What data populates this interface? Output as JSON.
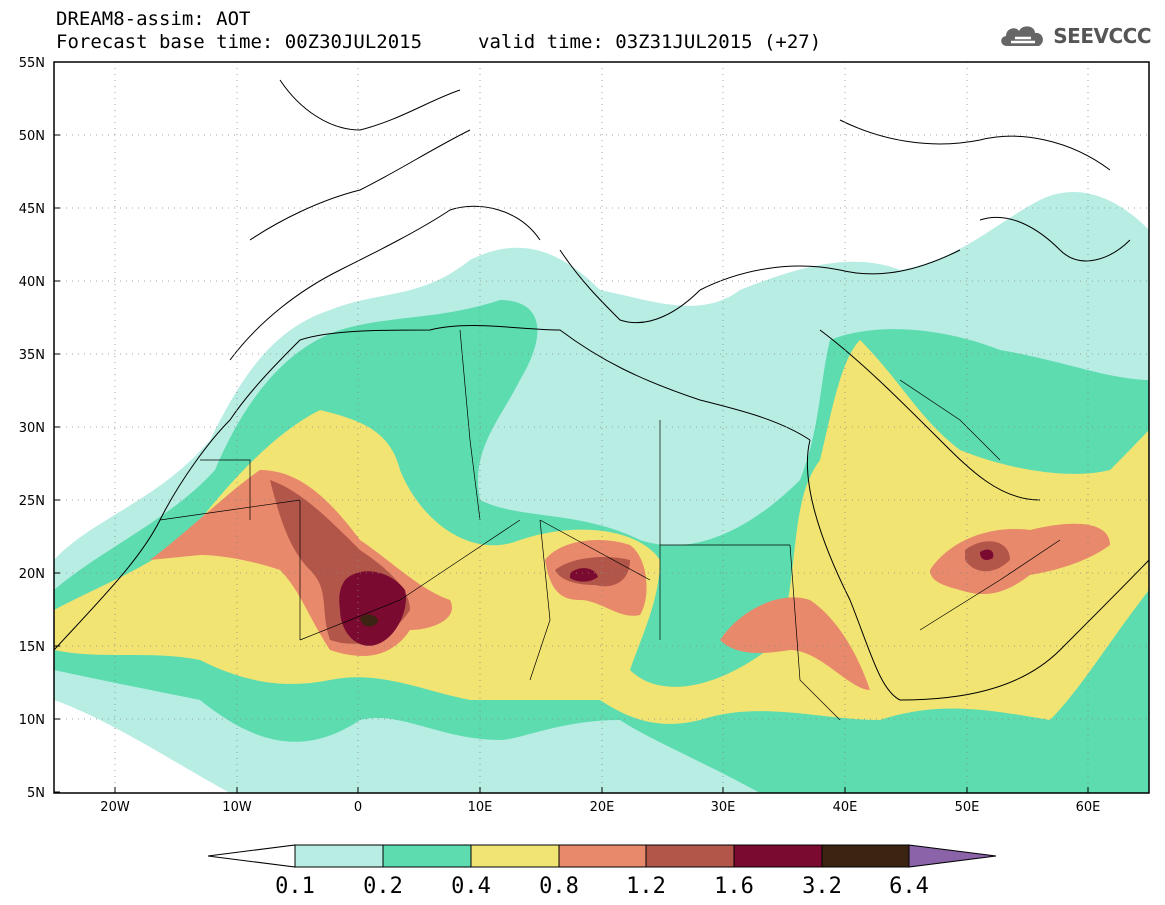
{
  "header": {
    "line1": "DREAM8-assim: AOT",
    "line2": "Forecast base time: 00Z30JUL2015",
    "line3": "valid time: 03Z31JUL2015 (+27)"
  },
  "logo": {
    "text": "SEEVCCC",
    "icon": "cloud-icon"
  },
  "axes": {
    "lat_labels": [
      "55N",
      "50N",
      "45N",
      "40N",
      "35N",
      "30N",
      "25N",
      "20N",
      "15N",
      "10N",
      "5N"
    ],
    "lon_labels": [
      "20W",
      "10W",
      "0",
      "10E",
      "20E",
      "30E",
      "40E",
      "50E",
      "60E"
    ]
  },
  "colorbar": {
    "labels": [
      "0.1",
      "0.2",
      "0.4",
      "0.8",
      "1.2",
      "1.6",
      "3.2",
      "6.4"
    ],
    "colors": [
      "#ffffff",
      "#b8ede4",
      "#5ddcb0",
      "#f2e473",
      "#e8896b",
      "#b3564a",
      "#7a0a30",
      "#3c2413",
      "#8a63a8"
    ]
  },
  "colors": {
    "c1": "#b8ede4",
    "c2": "#5ddcb0",
    "c3": "#f2e473",
    "c4": "#e8896b",
    "c5": "#b3564a",
    "c6": "#7a0a30",
    "c7": "#3c2413"
  }
}
